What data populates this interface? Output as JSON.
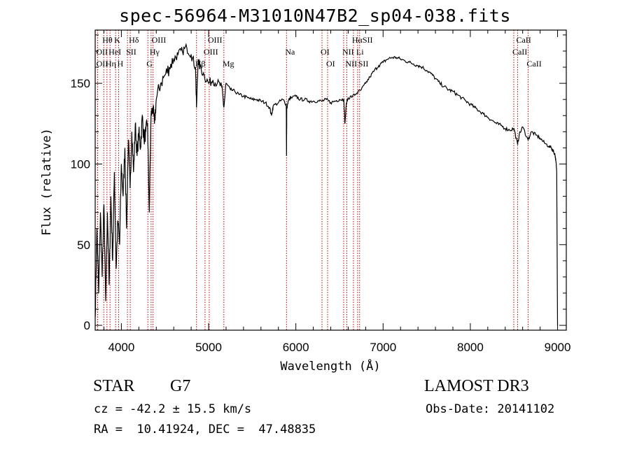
{
  "chart_data": {
    "type": "line",
    "title": "spec-56964-M31010N47B2_sp04-038.fits",
    "xlabel": "Wavelength (Å)",
    "ylabel": "Flux (relative)",
    "xlim": [
      3700,
      9100
    ],
    "ylim": [
      -3,
      183
    ],
    "xticks": [
      4000,
      5000,
      6000,
      7000,
      8000,
      9000
    ],
    "yticks": [
      0,
      50,
      100,
      150
    ],
    "spectrum": {
      "x": [
        3700,
        3720,
        3740,
        3760,
        3780,
        3800,
        3820,
        3840,
        3860,
        3880,
        3900,
        3920,
        3940,
        3960,
        3980,
        4000,
        4020,
        4040,
        4060,
        4080,
        4100,
        4120,
        4140,
        4160,
        4180,
        4200,
        4220,
        4240,
        4260,
        4280,
        4300,
        4320,
        4340,
        4360,
        4380,
        4400,
        4450,
        4500,
        4550,
        4600,
        4650,
        4700,
        4750,
        4800,
        4850,
        4861,
        4880,
        4900,
        4950,
        5000,
        5050,
        5100,
        5150,
        5175,
        5200,
        5250,
        5300,
        5350,
        5400,
        5450,
        5500,
        5550,
        5600,
        5650,
        5700,
        5720,
        5740,
        5800,
        5850,
        5890,
        5893,
        5896,
        5920,
        5950,
        6000,
        6050,
        6100,
        6150,
        6200,
        6250,
        6300,
        6350,
        6400,
        6450,
        6500,
        6550,
        6563,
        6580,
        6600,
        6650,
        6700,
        6750,
        6800,
        6850,
        6900,
        6950,
        7000,
        7050,
        7100,
        7150,
        7200,
        7250,
        7300,
        7350,
        7400,
        7450,
        7500,
        7550,
        7600,
        7650,
        7700,
        7750,
        7800,
        7850,
        7900,
        7950,
        8000,
        8050,
        8100,
        8150,
        8200,
        8250,
        8300,
        8350,
        8400,
        8450,
        8500,
        8542,
        8560,
        8600,
        8662,
        8700,
        8750,
        8800,
        8850,
        8900,
        8930,
        8950,
        8970,
        8980,
        8990,
        9000
      ],
      "y": [
        5,
        60,
        20,
        70,
        30,
        75,
        15,
        70,
        25,
        80,
        40,
        95,
        35,
        65,
        50,
        100,
        80,
        110,
        60,
        115,
        85,
        120,
        95,
        125,
        105,
        120,
        110,
        130,
        115,
        120,
        125,
        70,
        130,
        135,
        125,
        140,
        150,
        155,
        160,
        165,
        168,
        170,
        172,
        168,
        160,
        135,
        165,
        160,
        155,
        150,
        152,
        150,
        148,
        135,
        150,
        146,
        145,
        143,
        142,
        141,
        140,
        140,
        139,
        138,
        135,
        130,
        136,
        138,
        140,
        137,
        105,
        135,
        140,
        141,
        142,
        140,
        140,
        139,
        139,
        139,
        139,
        140,
        138,
        139,
        140,
        140,
        125,
        138,
        141,
        142,
        144,
        146,
        150,
        154,
        158,
        161,
        163,
        165,
        166,
        166,
        165,
        164,
        163,
        162,
        161,
        160,
        158,
        156,
        153,
        150,
        148,
        146,
        145,
        143,
        141,
        139,
        137,
        135,
        133,
        131,
        129,
        127,
        125,
        124,
        122,
        121,
        122,
        112,
        118,
        123,
        115,
        120,
        118,
        116,
        113,
        111,
        110,
        108,
        106,
        102,
        95,
        0
      ]
    },
    "lines": [
      {
        "label": "Hθ",
        "wl": 3798,
        "row": 1
      },
      {
        "label": "K",
        "wl": 3934,
        "row": 1
      },
      {
        "label": "Hδ",
        "wl": 4102,
        "row": 1
      },
      {
        "label": "OIII",
        "wl": 4363,
        "row": 1
      },
      {
        "label": "OIII",
        "wl": 5007,
        "row": 1
      },
      {
        "label": "HαSII",
        "wl": 6660,
        "row": 1
      },
      {
        "label": "CaII",
        "wl": 8542,
        "row": 1
      },
      {
        "label": "OII",
        "wl": 3727,
        "row": 2
      },
      {
        "label": "HeI",
        "wl": 3870,
        "row": 2
      },
      {
        "label": "SII",
        "wl": 4070,
        "row": 2
      },
      {
        "label": "Hγ",
        "wl": 4341,
        "row": 2
      },
      {
        "label": "OIII",
        "wl": 4959,
        "row": 2
      },
      {
        "label": "Na",
        "wl": 5893,
        "row": 2
      },
      {
        "label": "OI",
        "wl": 6300,
        "row": 2
      },
      {
        "label": "NII",
        "wl": 6548,
        "row": 2
      },
      {
        "label": "Li",
        "wl": 6708,
        "row": 2
      },
      {
        "label": "CaII",
        "wl": 8498,
        "row": 2
      },
      {
        "label": "OII",
        "wl": 3729,
        "row": 3
      },
      {
        "label": "Hη",
        "wl": 3835,
        "row": 3
      },
      {
        "label": "H",
        "wl": 3969,
        "row": 3
      },
      {
        "label": "G",
        "wl": 4304,
        "row": 3
      },
      {
        "label": "Hβ",
        "wl": 4861,
        "row": 3
      },
      {
        "label": "Mg",
        "wl": 5175,
        "row": 3
      },
      {
        "label": "OI",
        "wl": 6364,
        "row": 3
      },
      {
        "label": "NII",
        "wl": 6584,
        "row": 3
      },
      {
        "label": "SII",
        "wl": 6731,
        "row": 3
      },
      {
        "label": "CaII",
        "wl": 8662,
        "row": 3
      }
    ]
  },
  "info": {
    "class": "STAR",
    "subclass": "G7",
    "survey": "LAMOST DR3",
    "cz": "cz = -42.2 ± 15.5 km/s",
    "obs_date": "Obs-Date: 20141102",
    "radec": "RA =  10.41924, DEC =  47.48835"
  }
}
